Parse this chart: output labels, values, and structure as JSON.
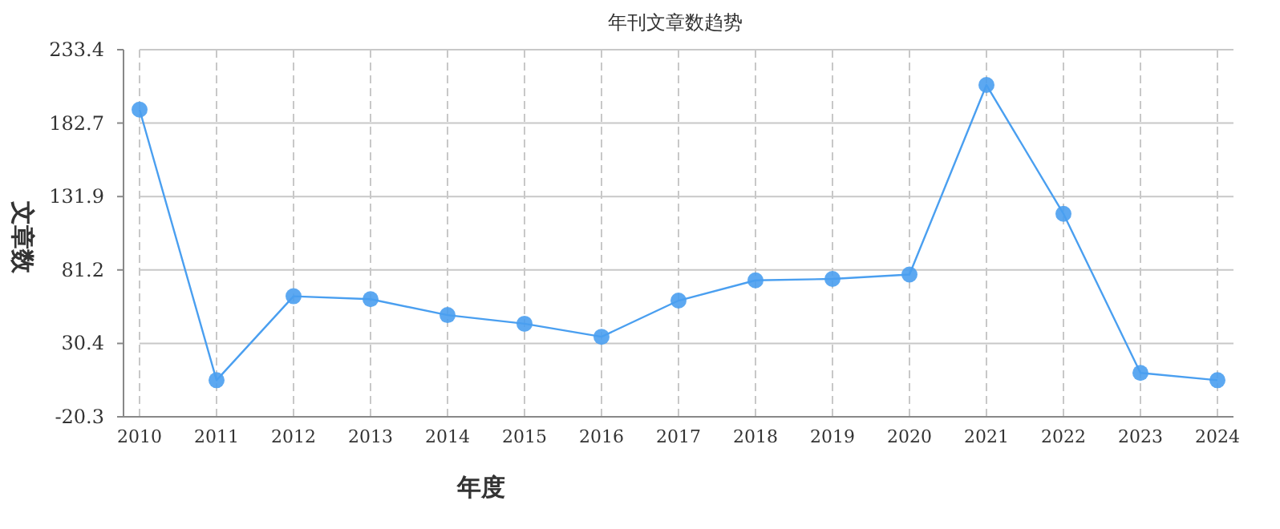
{
  "chart_data": {
    "type": "line",
    "title": "年刊文章数趋势",
    "xlabel": "年度",
    "ylabel": "文章数",
    "categories": [
      "2010",
      "2011",
      "2012",
      "2013",
      "2014",
      "2015",
      "2016",
      "2017",
      "2018",
      "2019",
      "2020",
      "2021",
      "2022",
      "2023",
      "2024"
    ],
    "series": [
      {
        "color": "#4a9ff0",
        "values": [
          192,
          5,
          63,
          61,
          50,
          44,
          35,
          60,
          74,
          75,
          78,
          209,
          120,
          10,
          5
        ]
      }
    ],
    "ylim": [
      -20.3,
      233.4
    ],
    "yticks": [
      -20.3,
      30.4,
      81.2,
      131.9,
      182.7,
      233.4
    ],
    "grid": true,
    "marker": "circle"
  }
}
